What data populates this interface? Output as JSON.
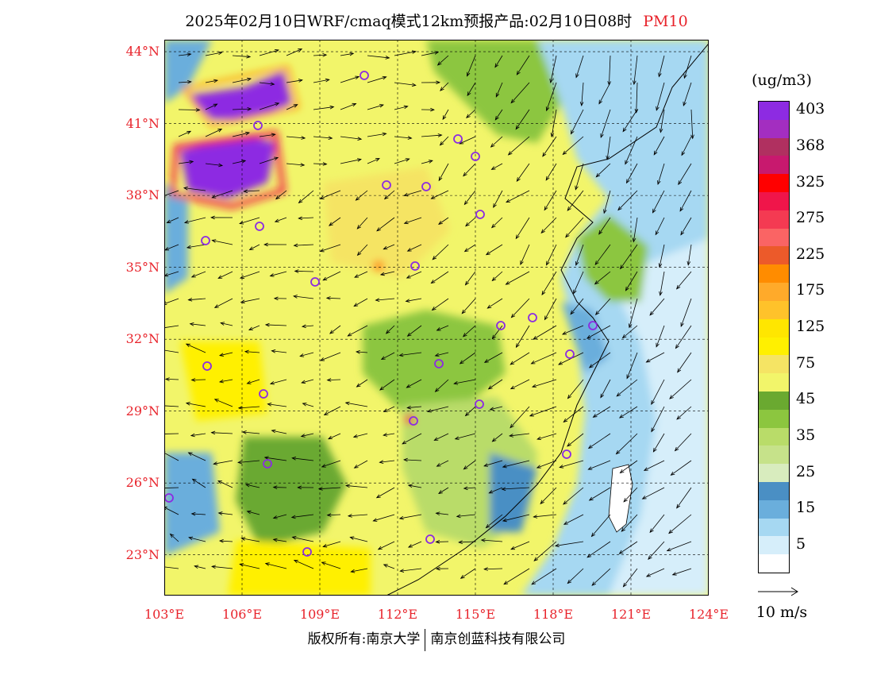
{
  "header": {
    "title": "2025年02月10日WRF/cmaq模式12km预报产品:02月10日08时",
    "pollutant": "PM10"
  },
  "map": {
    "lon_range": [
      103,
      124
    ],
    "lat_range": [
      21.3,
      44.5
    ],
    "lat_ticks": [
      {
        "value": 44,
        "label": "44°N"
      },
      {
        "value": 41,
        "label": "41°N"
      },
      {
        "value": 38,
        "label": "38°N"
      },
      {
        "value": 35,
        "label": "35°N"
      },
      {
        "value": 32,
        "label": "32°N"
      },
      {
        "value": 29,
        "label": "29°N"
      },
      {
        "value": 26,
        "label": "26°N"
      },
      {
        "value": 23,
        "label": "23°N"
      }
    ],
    "lon_ticks": [
      {
        "value": 103,
        "label": "103°E"
      },
      {
        "value": 106,
        "label": "106°E"
      },
      {
        "value": 109,
        "label": "109°E"
      },
      {
        "value": 112,
        "label": "112°E"
      },
      {
        "value": 115,
        "label": "115°E"
      },
      {
        "value": 118,
        "label": "118°E"
      },
      {
        "value": 121,
        "label": "121°E"
      },
      {
        "value": 124,
        "label": "124°E"
      }
    ],
    "tick_color": "#e8232b",
    "city_marker_color": "#8b2be2",
    "wind_vector_color": "#000000"
  },
  "legend": {
    "unit": "(ug/m3)",
    "levels": [
      {
        "label": "403",
        "color": "#8d2be2"
      },
      {
        "label": "",
        "color": "#a32ec0"
      },
      {
        "label": "368",
        "color": "#b03060"
      },
      {
        "label": "",
        "color": "#c8196e"
      },
      {
        "label": "325",
        "color": "#ff0000"
      },
      {
        "label": "",
        "color": "#f0154a"
      },
      {
        "label": "275",
        "color": "#f43a52"
      },
      {
        "label": "",
        "color": "#fa6464"
      },
      {
        "label": "225",
        "color": "#ec5a2a"
      },
      {
        "label": "",
        "color": "#ff8c00"
      },
      {
        "label": "175",
        "color": "#ffaa2a"
      },
      {
        "label": "",
        "color": "#ffc22a"
      },
      {
        "label": "125",
        "color": "#ffe600"
      },
      {
        "label": "",
        "color": "#fff000"
      },
      {
        "label": "75",
        "color": "#f5e464"
      },
      {
        "label": "",
        "color": "#f2f56a"
      },
      {
        "label": "45",
        "color": "#6aa930"
      },
      {
        "label": "",
        "color": "#8cc63f"
      },
      {
        "label": "35",
        "color": "#b9dc69"
      },
      {
        "label": "",
        "color": "#c6e28a"
      },
      {
        "label": "25",
        "color": "#d8ecbe"
      },
      {
        "label": "",
        "color": "#4a8fc4"
      },
      {
        "label": "15",
        "color": "#6aaedc"
      },
      {
        "label": "",
        "color": "#a6d8f2"
      },
      {
        "label": "5",
        "color": "#d6eefa"
      },
      {
        "label": "",
        "color": "#ffffff"
      }
    ],
    "ref_vector_label": "10 m/s"
  },
  "footer": {
    "copyright_left": "版权所有:南京大学",
    "copyright_right": "南京创蓝科技有限公司"
  }
}
